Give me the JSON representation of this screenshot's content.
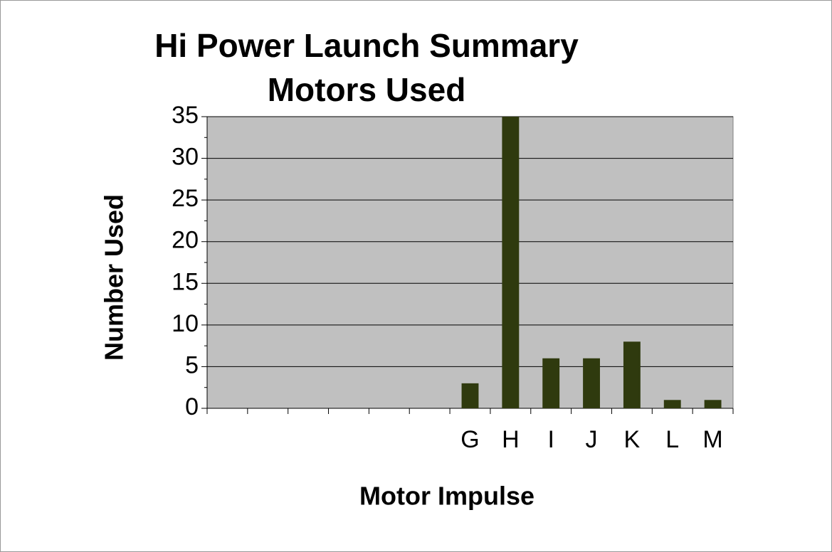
{
  "chart_data": {
    "type": "bar",
    "title": "Hi Power Launch Summary",
    "subtitle": "Motors Used",
    "x_label": "Motor Impulse",
    "y_label": "Number Used",
    "categories": [
      null,
      null,
      null,
      null,
      null,
      null,
      "G",
      "H",
      "I",
      "J",
      "K",
      "L",
      "M"
    ],
    "values": [
      null,
      null,
      null,
      null,
      null,
      null,
      3,
      35,
      6,
      6,
      8,
      1,
      1
    ],
    "color": "#2f3a0e",
    "ylim": [
      0,
      35
    ],
    "yticks": [
      0,
      5,
      10,
      15,
      20,
      25,
      30,
      35
    ],
    "grid": true
  }
}
